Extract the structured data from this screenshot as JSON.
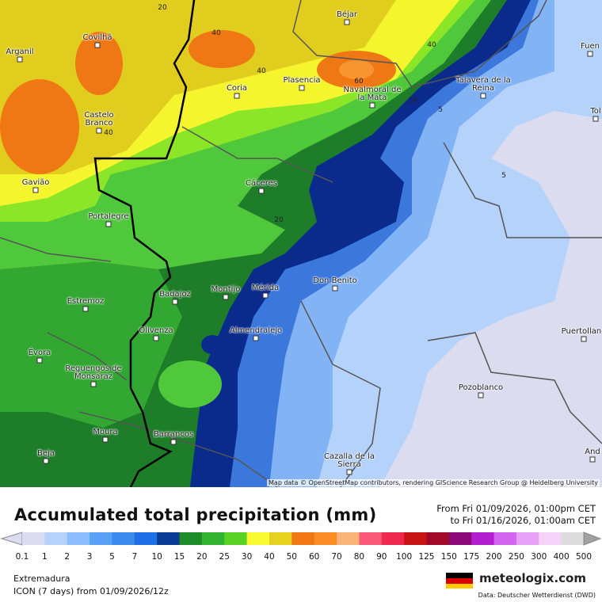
{
  "map": {
    "cities": [
      "Arganil",
      "Covilhã",
      "Castelo Branco",
      "Gavião",
      "Portalegre",
      "Estremoz",
      "Évora",
      "Reguengos de Monsaraz",
      "Moura",
      "Beja",
      "Barrancos",
      "Olivenza",
      "Badajoz",
      "Montijo",
      "Mérida",
      "Almendralejo",
      "Cáceres",
      "Coria",
      "Plasencia",
      "Béjar",
      "Navalmoral de la Mata",
      "Talavera de la Reina",
      "Don Benito",
      "Pozoblanco",
      "Cazalla de la Sierra",
      "Puertollano",
      "Fuen",
      "Tol",
      "And"
    ],
    "contour_labels": [
      "20",
      "40",
      "40",
      "40",
      "40",
      "60",
      "20",
      "5",
      "5",
      "20"
    ],
    "attribution": "Map data © OpenStreetMap contributors, rendering GIScience Research Group @ Heidelberg University"
  },
  "header": {
    "title": "Accumulated total precipitation (mm)",
    "from": "From Fri 01/09/2026, 01:00pm CET",
    "to": "to Fri 01/16/2026, 01:00am CET"
  },
  "legend": {
    "ticks": [
      0.1,
      1,
      2,
      3,
      5,
      7,
      10,
      15,
      20,
      25,
      30,
      40,
      50,
      60,
      70,
      80,
      90,
      100,
      125,
      150,
      175,
      200,
      250,
      300,
      400,
      500
    ]
  },
  "footer": {
    "region": "Extremadura",
    "model": "ICON (7 days)  from  01/09/2026/12z",
    "logo": "meteologix.com",
    "source": "Data: Deutscher Wetterdienst (DWD)"
  }
}
